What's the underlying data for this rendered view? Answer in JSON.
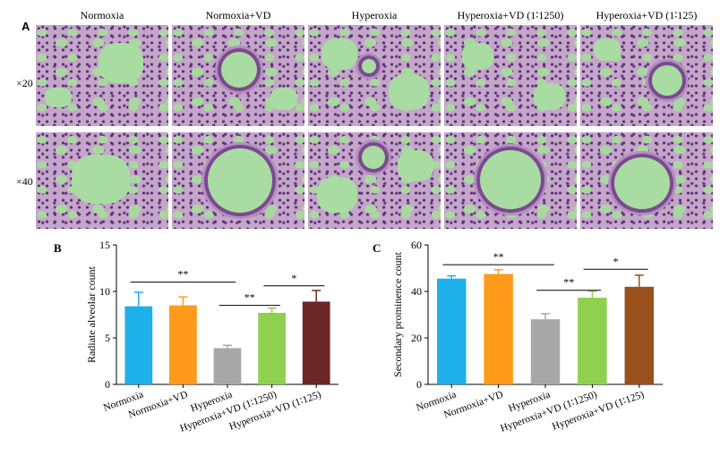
{
  "panel_a": {
    "letter": "A",
    "columns": [
      "Normoxia",
      "Normoxia+VD",
      "Hyperoxia",
      "Hyperoxia+VD (1∶1250)",
      "Hyperoxia+VD (1∶125)"
    ],
    "rows": [
      "×20",
      "×40"
    ]
  },
  "chart_data": [
    {
      "letter": "B",
      "type": "bar",
      "ylabel": "Radiate alveolar count",
      "ylim": [
        0,
        15
      ],
      "yticks": [
        0,
        5,
        10,
        15
      ],
      "categories": [
        "Normoxia",
        "Normoxia+VD",
        "Hyperoxia",
        "Hyperoxia+VD (1∶1250)",
        "Hyperoxia+VD (1∶125)"
      ],
      "values": [
        8.4,
        8.5,
        3.9,
        7.7,
        8.9
      ],
      "errors": [
        1.5,
        0.9,
        0.3,
        0.5,
        1.2
      ],
      "colors": [
        "#1eb0e8",
        "#ff9a1a",
        "#a8a8a8",
        "#8fd14f",
        "#6b2626"
      ],
      "significance": [
        {
          "from": 0,
          "to": 2,
          "y": 11.0,
          "label": "**"
        },
        {
          "from": 2,
          "to": 3,
          "y": 8.5,
          "label": "**"
        },
        {
          "from": 3,
          "to": 4,
          "y": 10.6,
          "label": "*"
        }
      ]
    },
    {
      "letter": "C",
      "type": "bar",
      "ylabel": "Secondary prominence count",
      "ylim": [
        0,
        60
      ],
      "yticks": [
        0,
        20,
        40,
        60
      ],
      "categories": [
        "Normoxia",
        "Normoxia+VD",
        "Hyperoxia",
        "Hyperoxia+VD (1∶1250)",
        "Hyperoxia+VD (1∶125)"
      ],
      "values": [
        45.5,
        47.5,
        28.0,
        37.3,
        42.0
      ],
      "errors": [
        1.2,
        1.8,
        2.4,
        2.8,
        5.0
      ],
      "colors": [
        "#1eb0e8",
        "#ff9a1a",
        "#a8a8a8",
        "#8fd14f",
        "#99501a"
      ],
      "significance": [
        {
          "from": 0,
          "to": 2,
          "y": 51.5,
          "label": "**"
        },
        {
          "from": 2,
          "to": 3,
          "y": 40.5,
          "label": "**"
        },
        {
          "from": 3,
          "to": 4,
          "y": 49.5,
          "label": "*"
        }
      ]
    }
  ]
}
